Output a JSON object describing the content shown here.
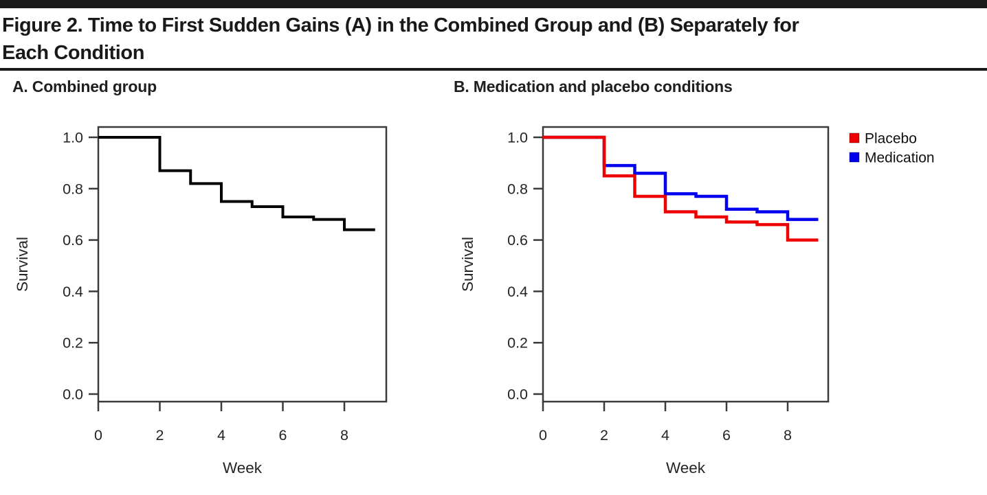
{
  "figure_title": {
    "line1": "Figure 2. Time to First Sudden Gains (A) in the Combined Group and (B) Separately for",
    "line2": "Each Condition",
    "full": "Figure 2. Time to First Sudden Gains (A) in the Combined Group and (B) Separately for Each Condition"
  },
  "panels": {
    "a_title": "A. Combined group",
    "b_title": "B. Medication and placebo conditions"
  },
  "colors": {
    "rule": "#1b1b1b",
    "axis": "#3a3a3a",
    "tick_text": "#242424",
    "combined_line": "#000000",
    "placebo_red": "#ee0000",
    "medication_blue": "#0000ee"
  },
  "chart_data": [
    {
      "type": "line",
      "subtype": "kaplan-meier-step",
      "panel": "A",
      "title": "A. Combined group",
      "xlabel": "Week",
      "ylabel": "Survival",
      "xticks": [
        0,
        2,
        4,
        6,
        8
      ],
      "yticks": [
        1.0,
        0.8,
        0.6,
        0.4,
        0.2,
        0.0
      ],
      "xlim": [
        0,
        9.4
      ],
      "ylim": [
        -0.03,
        1.04
      ],
      "grid": false,
      "legend_position": "none",
      "end_week": 9,
      "series": [
        {
          "name": "Combined",
          "color": "#000000",
          "line_width": 4,
          "steps_weeks": [
            0,
            2,
            3,
            4,
            5,
            6,
            7,
            8
          ],
          "steps_survival": [
            1.0,
            0.87,
            0.82,
            0.75,
            0.73,
            0.69,
            0.68,
            0.64
          ]
        }
      ]
    },
    {
      "type": "line",
      "subtype": "kaplan-meier-step",
      "panel": "B",
      "title": "B. Medication and placebo conditions",
      "xlabel": "Week",
      "ylabel": "Survival",
      "xticks": [
        0,
        2,
        4,
        6,
        8
      ],
      "yticks": [
        1.0,
        0.8,
        0.6,
        0.4,
        0.2,
        0.0
      ],
      "xlim": [
        0,
        9.4
      ],
      "ylim": [
        -0.03,
        1.04
      ],
      "grid": false,
      "legend_position": "right-top",
      "end_week": 9,
      "legend": [
        {
          "label": "Placebo",
          "color": "#ee0000"
        },
        {
          "label": "Medication",
          "color": "#0000ee"
        }
      ],
      "series": [
        {
          "name": "Medication",
          "color": "#0000ee",
          "line_width": 4.5,
          "steps_weeks": [
            0,
            2,
            3,
            4,
            5,
            6,
            7,
            8
          ],
          "steps_survival": [
            1.0,
            0.89,
            0.86,
            0.78,
            0.77,
            0.72,
            0.71,
            0.68
          ]
        },
        {
          "name": "Placebo",
          "color": "#ee0000",
          "line_width": 4.5,
          "steps_weeks": [
            0,
            2,
            3,
            4,
            5,
            6,
            7,
            8
          ],
          "steps_survival": [
            1.0,
            0.85,
            0.77,
            0.71,
            0.69,
            0.67,
            0.66,
            0.6
          ]
        }
      ]
    }
  ]
}
